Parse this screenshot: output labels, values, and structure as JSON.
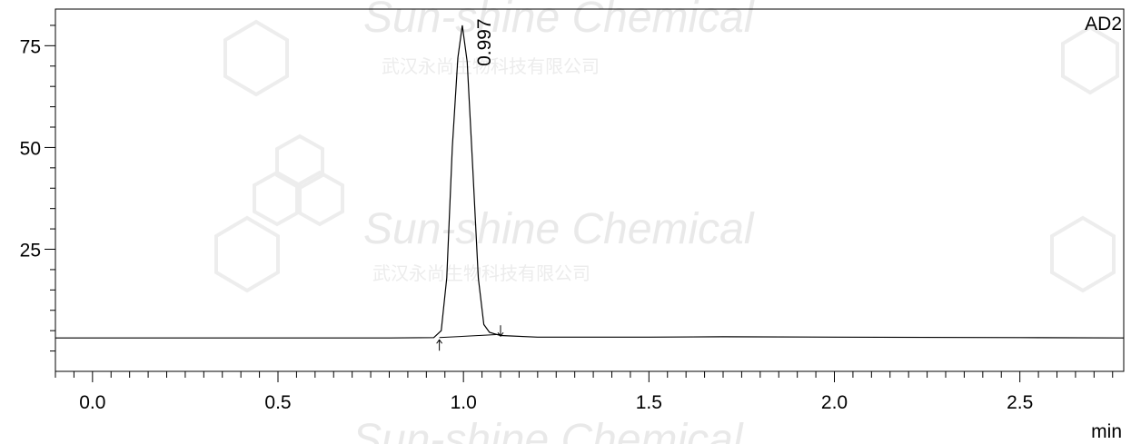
{
  "chart_data": {
    "type": "line",
    "detector_label": "AD2",
    "x_unit_label": "min",
    "xlim": [
      -0.1,
      2.78
    ],
    "ylim": [
      -5,
      84
    ],
    "x_ticks": [
      0.0,
      0.5,
      1.0,
      1.5,
      2.0,
      2.5
    ],
    "x_tick_labels": [
      "0.0",
      "0.5",
      "1.0",
      "1.5",
      "2.0",
      "2.5"
    ],
    "y_ticks": [
      25,
      50,
      75
    ],
    "y_tick_labels": [
      "25",
      "50",
      "75"
    ],
    "baseline": 3.2,
    "series": [
      {
        "x": [
          -0.1,
          0.0,
          0.2,
          0.5,
          0.8,
          0.92,
          0.94,
          0.955,
          0.97,
          0.985,
          0.997,
          1.01,
          1.025,
          1.04,
          1.055,
          1.07,
          1.085,
          1.1,
          1.2,
          1.5,
          1.7,
          2.0,
          2.5,
          2.78
        ],
        "y": [
          3.2,
          3.2,
          3.2,
          3.2,
          3.2,
          3.3,
          5.0,
          18,
          50,
          72,
          80,
          71,
          45,
          18,
          6.5,
          4.6,
          4.2,
          3.8,
          3.4,
          3.4,
          3.5,
          3.4,
          3.3,
          3.2
        ]
      }
    ],
    "peaks": [
      {
        "label": "0.997",
        "x": 0.997,
        "y": 80
      }
    ],
    "integration_markers": [
      {
        "x": 0.935,
        "direction": "up"
      },
      {
        "x": 1.1,
        "direction": "down"
      }
    ]
  },
  "watermark": {
    "brand": "Sun-shine Chemical",
    "subtitle": "武汉永尚生物科技有限公司"
  }
}
